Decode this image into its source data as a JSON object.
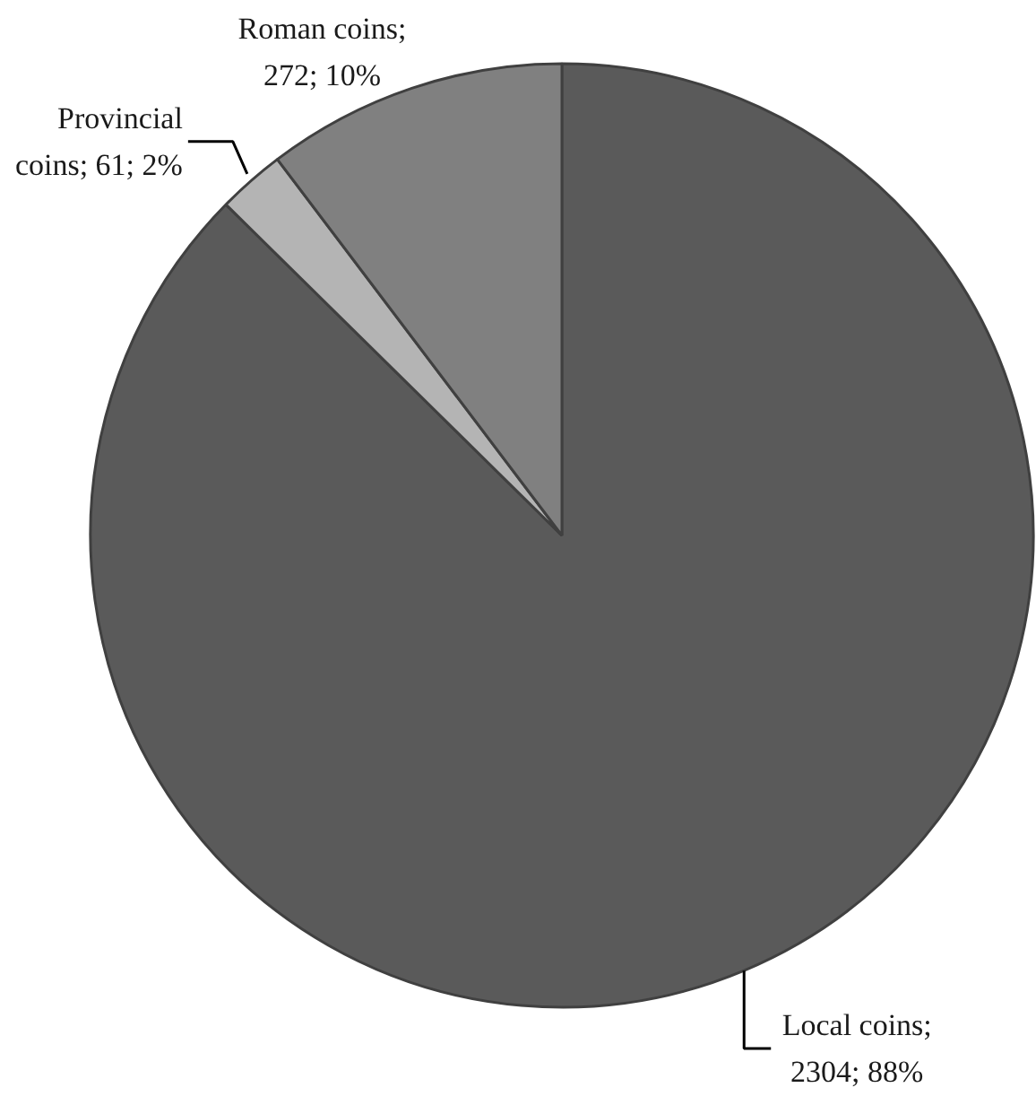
{
  "chart_data": {
    "type": "pie",
    "categories": [
      "Local coins",
      "Provincial coins",
      "Roman coins"
    ],
    "values": [
      2304,
      61,
      272
    ],
    "colors": [
      "#5a5a5a",
      "#b4b4b4",
      "#808080"
    ],
    "value_labels": [
      "; 2304; 88%",
      "; 61; 2%",
      "; 272; 10%"
    ]
  }
}
